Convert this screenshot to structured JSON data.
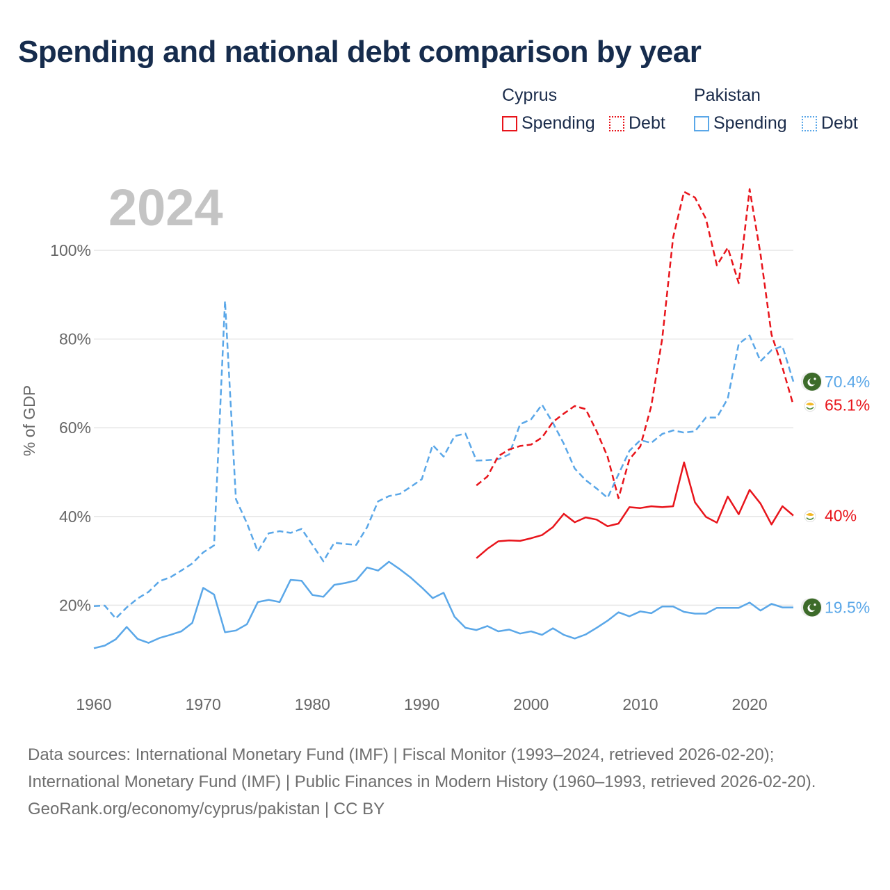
{
  "title": "Spending and national debt comparison by year",
  "legend": {
    "groups": [
      {
        "name": "Cyprus",
        "items": [
          {
            "label": "Spending"
          },
          {
            "label": "Debt"
          }
        ]
      },
      {
        "name": "Pakistan",
        "items": [
          {
            "label": "Spending"
          },
          {
            "label": "Debt"
          }
        ]
      }
    ]
  },
  "footer": {
    "sources": "Data sources: International Monetary Fund (IMF) | Fiscal Monitor (1993–2024, retrieved 2026-02-20); International Monetary Fund (IMF) | Public Finances in Modern History (1960–1993, retrieved 2026-02-20).",
    "url": "GeoRank.org/economy/cyprus/pakistan | CC BY"
  },
  "colors": {
    "cyprus": "#e8141b",
    "pakistan": "#5aa7e8",
    "grid": "#e6e6e6",
    "axis_text": "#666666",
    "year_watermark": "#c4c4c4"
  },
  "chart_data": {
    "type": "line",
    "year_label": "2024",
    "ylabel": "% of GDP",
    "xlim": [
      1960,
      2024
    ],
    "ylim": [
      0,
      115
    ],
    "yticks": [
      20,
      40,
      60,
      80,
      100
    ],
    "ytick_labels": [
      "20%",
      "40%",
      "60%",
      "80%",
      "100%"
    ],
    "xticks": [
      1960,
      1970,
      1980,
      1990,
      2000,
      2010,
      2020
    ],
    "xtick_labels": [
      "1960",
      "1970",
      "1980",
      "1990",
      "2000",
      "2010",
      "2020"
    ],
    "series": [
      {
        "name": "Pakistan Spending",
        "country": "Pakistan",
        "metric": "Spending",
        "style": "solid",
        "end_label": "19.5%",
        "flag": "pakistan-flag",
        "x": [
          1960,
          1961,
          1962,
          1963,
          1964,
          1965,
          1966,
          1967,
          1968,
          1969,
          1970,
          1971,
          1972,
          1973,
          1974,
          1975,
          1976,
          1977,
          1978,
          1979,
          1980,
          1981,
          1982,
          1983,
          1984,
          1985,
          1986,
          1987,
          1988,
          1989,
          1990,
          1991,
          1992,
          1993,
          1994,
          1995,
          1996,
          1997,
          1998,
          1999,
          2000,
          2001,
          2002,
          2003,
          2004,
          2005,
          2006,
          2007,
          2008,
          2009,
          2010,
          2011,
          2012,
          2013,
          2014,
          2015,
          2016,
          2017,
          2018,
          2019,
          2020,
          2021,
          2022,
          2023,
          2024
        ],
        "values": [
          10.3,
          10.9,
          12.3,
          15.1,
          12.4,
          11.5,
          12.6,
          13.3,
          14.1,
          16.0,
          23.9,
          22.4,
          13.9,
          14.3,
          15.7,
          20.7,
          21.2,
          20.7,
          25.7,
          25.5,
          22.3,
          21.9,
          24.6,
          25.0,
          25.6,
          28.5,
          27.8,
          29.8,
          28.1,
          26.2,
          24.0,
          21.6,
          22.8,
          17.4,
          14.9,
          14.4,
          15.3,
          14.1,
          14.5,
          13.6,
          14.1,
          13.3,
          14.8,
          13.3,
          12.5,
          13.4,
          14.9,
          16.5,
          18.4,
          17.5,
          18.6,
          18.2,
          19.7,
          19.7,
          18.5,
          18.1,
          18.1,
          19.4,
          19.4,
          19.4,
          20.6,
          18.8,
          20.3,
          19.5,
          19.5
        ]
      },
      {
        "name": "Pakistan Debt",
        "country": "Pakistan",
        "metric": "Debt",
        "style": "dashed",
        "end_label": "70.4%",
        "flag": "pakistan-flag",
        "x": [
          1960,
          1961,
          1962,
          1963,
          1964,
          1965,
          1966,
          1967,
          1968,
          1969,
          1970,
          1971,
          1972,
          1973,
          1974,
          1975,
          1976,
          1977,
          1978,
          1979,
          1980,
          1981,
          1982,
          1983,
          1984,
          1985,
          1986,
          1987,
          1988,
          1989,
          1990,
          1991,
          1992,
          1993,
          1994,
          1995,
          1996,
          1997,
          1998,
          1999,
          2000,
          2001,
          2002,
          2003,
          2004,
          2005,
          2006,
          2007,
          2008,
          2009,
          2010,
          2011,
          2012,
          2013,
          2014,
          2015,
          2016,
          2017,
          2018,
          2019,
          2020,
          2021,
          2022,
          2023,
          2024
        ],
        "values": [
          19.8,
          19.9,
          17.0,
          19.5,
          21.5,
          23.0,
          25.4,
          26.3,
          27.8,
          29.4,
          31.9,
          33.5,
          88.6,
          43.9,
          38.5,
          32.1,
          36.2,
          36.7,
          36.3,
          37.2,
          33.6,
          29.9,
          34.1,
          33.8,
          33.6,
          37.6,
          43.4,
          44.6,
          45.1,
          46.7,
          48.4,
          56.1,
          53.5,
          58.1,
          58.7,
          52.6,
          52.7,
          52.9,
          54.0,
          60.8,
          61.9,
          65.2,
          61.1,
          56.4,
          50.8,
          48.2,
          46.3,
          44.2,
          49.5,
          54.8,
          57.2,
          56.6,
          58.6,
          59.4,
          58.9,
          59.2,
          62.3,
          62.3,
          66.6,
          78.9,
          80.8,
          75.0,
          77.5,
          78.4,
          70.4
        ]
      },
      {
        "name": "Cyprus Spending",
        "country": "Cyprus",
        "metric": "Spending",
        "style": "solid",
        "end_label": "40%",
        "flag": "cyprus-flag",
        "x": [
          1995,
          1996,
          1997,
          1998,
          1999,
          2000,
          2001,
          2002,
          2003,
          2004,
          2005,
          2006,
          2007,
          2008,
          2009,
          2010,
          2011,
          2012,
          2013,
          2014,
          2015,
          2016,
          2017,
          2018,
          2019,
          2020,
          2021,
          2022,
          2023,
          2024
        ],
        "values": [
          30.6,
          32.7,
          34.4,
          34.6,
          34.5,
          35.1,
          35.8,
          37.6,
          40.6,
          38.7,
          39.8,
          39.3,
          37.8,
          38.4,
          42.1,
          41.9,
          42.3,
          42.1,
          42.3,
          52.2,
          43.2,
          39.9,
          38.6,
          44.5,
          40.5,
          46.0,
          42.9,
          38.2,
          42.3,
          40.2
        ]
      },
      {
        "name": "Cyprus Debt",
        "country": "Cyprus",
        "metric": "Debt",
        "style": "dashed",
        "end_label": "65.1%",
        "flag": "cyprus-flag",
        "x": [
          1995,
          1996,
          1997,
          1998,
          1999,
          2000,
          2001,
          2002,
          2003,
          2004,
          2005,
          2006,
          2007,
          2008,
          2009,
          2010,
          2011,
          2012,
          2013,
          2014,
          2015,
          2016,
          2017,
          2018,
          2019,
          2020,
          2021,
          2022,
          2023,
          2024
        ],
        "values": [
          47.0,
          49.0,
          53.6,
          55.1,
          55.9,
          56.2,
          57.8,
          61.3,
          63.2,
          64.9,
          64.2,
          59.2,
          53.5,
          44.1,
          52.9,
          55.8,
          64.9,
          80.1,
          102.9,
          113.2,
          111.9,
          107.1,
          96.6,
          100.6,
          92.6,
          113.8,
          99.1,
          81.0,
          73.6,
          65.1
        ]
      }
    ]
  }
}
